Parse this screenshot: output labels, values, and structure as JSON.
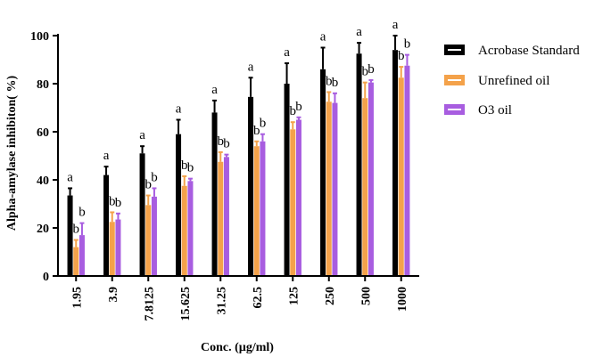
{
  "colors": {
    "Acrobase Standard": "#000000",
    "Unrefined oil": "#f4a24a",
    "O3 oil": "#a85de0",
    "axis": "#000000",
    "errorbar": "#000000"
  },
  "chart_data": {
    "type": "bar",
    "title": "",
    "xlabel": "Conc. (µg/ml)",
    "ylabel": "Alpha-amylase inhibiton( %)",
    "ylim": [
      0,
      100
    ],
    "yticks": [
      0,
      20,
      40,
      60,
      80,
      100
    ],
    "grid": false,
    "legend_position": "right",
    "categories": [
      "1.95",
      "3.9",
      "7.8125",
      "15.625",
      "31.25",
      "62.5",
      "125",
      "250",
      "500",
      "1000"
    ],
    "series": [
      {
        "name": "Acrobase Standard",
        "values": [
          33.5,
          42,
          51,
          59,
          68,
          74.5,
          80,
          86,
          92.5,
          94
        ],
        "upper": [
          36.5,
          45.5,
          54,
          65,
          73,
          82.5,
          88.5,
          95,
          97,
          100
        ],
        "annotations": [
          "a",
          "a",
          "a",
          "a",
          "a",
          "a",
          "a",
          "a",
          "a",
          "a"
        ]
      },
      {
        "name": "Unrefined oil",
        "values": [
          12,
          22.5,
          29.5,
          37.5,
          47.5,
          54,
          61,
          72.5,
          74,
          82.5
        ],
        "upper": [
          15,
          26.5,
          33.5,
          41.5,
          51.5,
          56,
          64,
          76.5,
          80.5,
          87
        ],
        "annotations": [
          "b",
          "b",
          "b",
          "b",
          "b",
          "b",
          "b",
          "b",
          "b",
          "b"
        ]
      },
      {
        "name": "O3 oil",
        "values": [
          17,
          23.5,
          33,
          39.5,
          49.5,
          56,
          65,
          72,
          80.5,
          87.5
        ],
        "upper": [
          22,
          26,
          36.5,
          40.5,
          50.5,
          59,
          66,
          76,
          81.5,
          92
        ],
        "annotations": [
          "b",
          "b",
          "b",
          "b",
          "b",
          "b",
          "b",
          "b",
          "b",
          "b"
        ]
      }
    ]
  }
}
